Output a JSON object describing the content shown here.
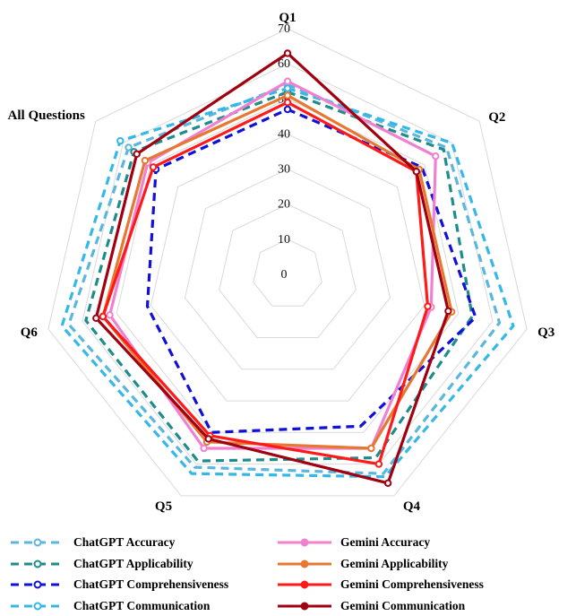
{
  "chart_data": {
    "type": "radar",
    "title": "",
    "axes": [
      "Q1",
      "Q2",
      "Q3",
      "Q4",
      "Q5",
      "Q6",
      "All Questions"
    ],
    "rlim": [
      0,
      70
    ],
    "ticks": [
      0,
      10,
      20,
      30,
      40,
      50,
      60,
      70
    ],
    "grid": true,
    "legend_position": "bottom",
    "series": [
      {
        "name": "ChatGPT Accuracy",
        "values": [
          54,
          58,
          62,
          63,
          61,
          64,
          58
        ],
        "color": "#5bb6de",
        "dash": true,
        "marker": true
      },
      {
        "name": "ChatGPT Applicability",
        "values": [
          52,
          57,
          54,
          58,
          59,
          59,
          56
        ],
        "color": "#1f8c8c",
        "dash": true,
        "marker": true
      },
      {
        "name": "ChatGPT Comprehensiveness",
        "values": [
          47,
          49,
          55,
          48,
          50,
          41,
          48
        ],
        "color": "#1010d8",
        "dash": true,
        "marker": true
      },
      {
        "name": "ChatGPT Communication",
        "values": [
          53,
          60,
          66,
          64,
          63,
          66,
          61
        ],
        "color": "#33b8e8",
        "dash": true,
        "marker": true
      },
      {
        "name": "Gemini Accuracy",
        "values": [
          55,
          54,
          42,
          55,
          55,
          52,
          51
        ],
        "color": "#f080d0",
        "dash": false,
        "marker": true
      },
      {
        "name": "Gemini Applicability",
        "values": [
          51,
          48,
          48,
          55,
          53,
          54,
          52
        ],
        "color": "#e67832",
        "dash": false,
        "marker": true
      },
      {
        "name": "Gemini Comprehensiveness",
        "values": [
          49,
          47,
          41,
          60,
          51,
          54,
          49
        ],
        "color": "#ff1a1a",
        "dash": false,
        "marker": true
      },
      {
        "name": "Gemini Communication",
        "values": [
          63,
          47,
          47,
          66,
          52,
          56,
          55
        ],
        "color": "#a00010",
        "dash": false,
        "marker": true
      }
    ]
  }
}
